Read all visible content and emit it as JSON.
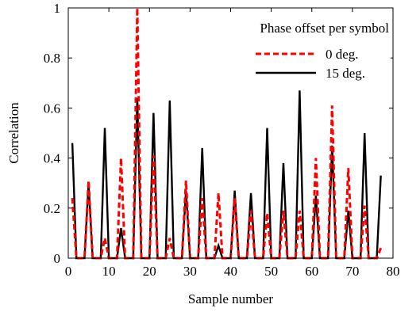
{
  "chart_data": {
    "type": "line",
    "xlabel": "Sample number",
    "ylabel": "Correlation",
    "xlim": [
      0,
      80
    ],
    "ylim": [
      0,
      1
    ],
    "xticks": [
      0,
      10,
      20,
      30,
      40,
      50,
      60,
      70,
      80
    ],
    "yticks": [
      0,
      0.2,
      0.4,
      0.6,
      0.8,
      1
    ],
    "ytick_labels": [
      "0",
      "0.2",
      "0.4",
      "0.6",
      "0.8",
      "1"
    ],
    "grid": false,
    "legend": {
      "title": "Phase offset per symbol",
      "position": "top-right"
    },
    "series": [
      {
        "name": "0 deg.",
        "color": "#ff0000",
        "style": "dashed",
        "x": [
          1,
          2,
          3,
          4,
          5,
          6,
          7,
          8,
          9,
          10,
          11,
          12,
          13,
          14,
          15,
          16,
          17,
          18,
          19,
          20,
          21,
          22,
          23,
          24,
          25,
          26,
          27,
          28,
          29,
          30,
          31,
          32,
          33,
          34,
          35,
          36,
          37,
          38,
          39,
          40,
          41,
          42,
          43,
          44,
          45,
          46,
          47,
          48,
          49,
          50,
          51,
          52,
          53,
          54,
          55,
          56,
          57,
          58,
          59,
          60,
          61,
          62,
          63,
          64,
          65,
          66,
          67,
          68,
          69,
          70,
          71,
          72,
          73,
          74,
          75,
          76,
          77
        ],
        "y": [
          0.24,
          0,
          0,
          0,
          0.31,
          0,
          0,
          0,
          0.08,
          0,
          0,
          0,
          0.4,
          0,
          0,
          0,
          1.0,
          0,
          0,
          0,
          0.41,
          0,
          0,
          0,
          0.08,
          0,
          0,
          0,
          0.31,
          0,
          0,
          0,
          0.24,
          0,
          0,
          0,
          0.26,
          0,
          0,
          0,
          0.24,
          0,
          0,
          0,
          0.19,
          0,
          0,
          0,
          0.18,
          0,
          0,
          0,
          0.19,
          0,
          0,
          0,
          0.19,
          0,
          0,
          0,
          0.4,
          0,
          0,
          0,
          0.61,
          0,
          0,
          0,
          0.36,
          0,
          0,
          0,
          0.21,
          0,
          0,
          0,
          0.04
        ]
      },
      {
        "name": "15 deg.",
        "color": "#000000",
        "style": "solid",
        "x": [
          1,
          2,
          3,
          4,
          5,
          6,
          7,
          8,
          9,
          10,
          11,
          12,
          13,
          14,
          15,
          16,
          17,
          18,
          19,
          20,
          21,
          22,
          23,
          24,
          25,
          26,
          27,
          28,
          29,
          30,
          31,
          32,
          33,
          34,
          35,
          36,
          37,
          38,
          39,
          40,
          41,
          42,
          43,
          44,
          45,
          46,
          47,
          48,
          49,
          50,
          51,
          52,
          53,
          54,
          55,
          56,
          57,
          58,
          59,
          60,
          61,
          62,
          63,
          64,
          65,
          66,
          67,
          68,
          69,
          70,
          71,
          72,
          73,
          74,
          75,
          76,
          77
        ],
        "y": [
          0.46,
          0,
          0,
          0,
          0.3,
          0,
          0,
          0,
          0.52,
          0,
          0,
          0,
          0.12,
          0,
          0,
          0,
          0.64,
          0,
          0,
          0,
          0.58,
          0,
          0,
          0,
          0.63,
          0,
          0,
          0,
          0.27,
          0,
          0,
          0,
          0.44,
          0,
          0,
          0,
          0.05,
          0,
          0,
          0,
          0.27,
          0,
          0,
          0,
          0.26,
          0,
          0,
          0,
          0.52,
          0,
          0,
          0,
          0.38,
          0,
          0,
          0,
          0.67,
          0,
          0,
          0,
          0.25,
          0,
          0,
          0,
          0.45,
          0,
          0,
          0,
          0.19,
          0,
          0,
          0,
          0.5,
          0,
          0,
          0,
          0.33
        ]
      }
    ]
  }
}
